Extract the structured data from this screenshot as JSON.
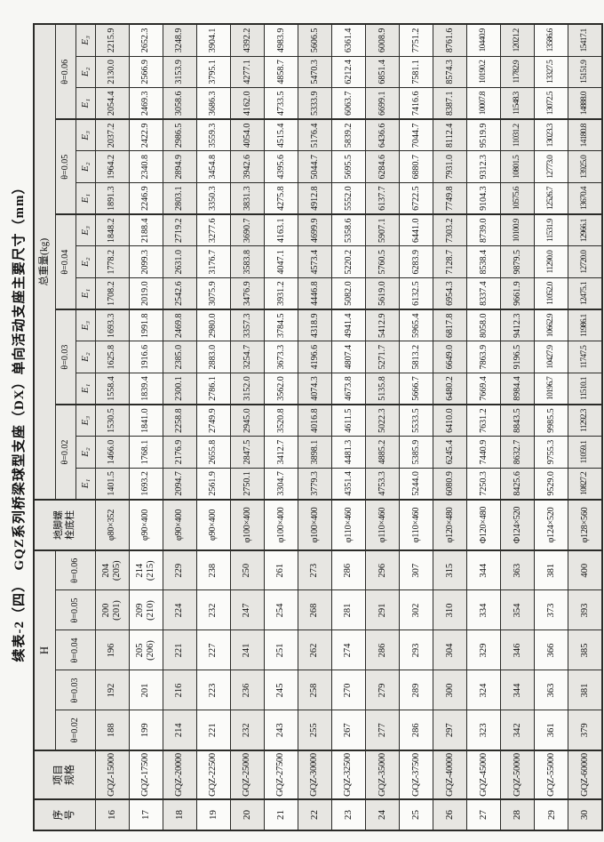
{
  "title": "续表-2（四）　GQZ系列桥梁球型支座（DX）单向活动支座主要尺寸（mm）",
  "colors": {
    "cell_shaded": "#e7e6e2",
    "cell_plain": "#fbfbf9",
    "border": "#2b2b28",
    "page_background": "#f7f7f4",
    "text": "#111111"
  },
  "table": {
    "headers": {
      "serial": "序\n号",
      "spec": "项目\n规格",
      "h": "H",
      "bolt": "地脚螺\n栓底柱",
      "weight": "总重量(kg)",
      "theta_labels": [
        "θ=0.02",
        "θ=0.03",
        "θ=0.04",
        "θ=0.05",
        "θ=0.06"
      ],
      "e_labels": [
        "E₁",
        "E₂",
        "E₃"
      ]
    },
    "rows": [
      {
        "no": "16",
        "spec": "GQZ-15000",
        "h": [
          "188",
          "192",
          "196",
          "200\n(201)",
          "204\n(205)"
        ],
        "bolt": "φ80×352",
        "e": [
          "1401.5",
          "1466.0",
          "1530.5",
          "1558.4",
          "1625.8",
          "1693.3",
          "1708.2",
          "1778.2",
          "1848.2",
          "1891.3",
          "1964.2",
          "2037.2",
          "2054.4",
          "2130.0",
          "2215.9"
        ]
      },
      {
        "no": "17",
        "spec": "GQZ-17500",
        "h": [
          "199",
          "201",
          "205\n(206)",
          "209\n(210)",
          "214\n(215)"
        ],
        "bolt": "φ90×400",
        "e": [
          "1693.2",
          "1768.1",
          "1841.0",
          "1839.4",
          "1916.6",
          "1991.8",
          "2019.0",
          "2099.3",
          "2188.4",
          "2246.9",
          "2340.8",
          "2422.9",
          "2469.3",
          "2566.9",
          "2652.3"
        ]
      },
      {
        "no": "18",
        "spec": "GQZ-20000",
        "h": [
          "214",
          "216",
          "221",
          "224",
          "229"
        ],
        "bolt": "φ90×400",
        "e": [
          "2094.7",
          "2176.9",
          "2258.8",
          "2300.1",
          "2385.0",
          "2469.8",
          "2542.6",
          "2631.0",
          "2719.2",
          "2803.1",
          "2894.9",
          "2986.5",
          "3058.6",
          "3153.9",
          "3248.9"
        ]
      },
      {
        "no": "19",
        "spec": "GQZ-22500",
        "h": [
          "221",
          "223",
          "227",
          "232",
          "238"
        ],
        "bolt": "φ90×400",
        "e": [
          "2561.9",
          "2655.8",
          "2749.9",
          "2786.1",
          "2883.0",
          "2980.0",
          "3075.9",
          "3176.7",
          "3277.6",
          "3350.3",
          "3454.8",
          "3559.3",
          "3686.3",
          "3795.1",
          "3904.1"
        ]
      },
      {
        "no": "20",
        "spec": "GQZ-25000",
        "h": [
          "232",
          "236",
          "241",
          "247",
          "250"
        ],
        "bolt": "φ100×400",
        "e": [
          "2750.1",
          "2847.5",
          "2945.0",
          "3152.0",
          "3254.7",
          "3357.3",
          "3476.9",
          "3583.8",
          "3690.7",
          "3831.3",
          "3942.6",
          "4054.0",
          "4162.0",
          "4277.1",
          "4392.2"
        ]
      },
      {
        "no": "21",
        "spec": "GQZ-27500",
        "h": [
          "243",
          "245",
          "251",
          "254",
          "261"
        ],
        "bolt": "φ100×400",
        "e": [
          "3304.7",
          "3412.7",
          "3520.8",
          "3562.0",
          "3673.3",
          "3784.5",
          "3931.2",
          "4047.1",
          "4163.1",
          "4275.8",
          "4395.6",
          "4515.4",
          "4733.5",
          "4858.7",
          "4983.9"
        ]
      },
      {
        "no": "22",
        "spec": "GQZ-30000",
        "h": [
          "255",
          "258",
          "262",
          "268",
          "273"
        ],
        "bolt": "φ100×400",
        "e": [
          "3779.3",
          "3898.1",
          "4016.8",
          "4074.3",
          "4196.6",
          "4318.9",
          "4446.8",
          "4573.4",
          "4699.9",
          "4912.8",
          "5044.7",
          "5176.4",
          "5333.9",
          "5470.3",
          "5606.5"
        ]
      },
      {
        "no": "23",
        "spec": "GQZ-32500",
        "h": [
          "267",
          "270",
          "274",
          "281",
          "286"
        ],
        "bolt": "φ110×460",
        "e": [
          "4351.4",
          "4481.3",
          "4611.5",
          "4673.8",
          "4807.4",
          "4941.4",
          "5082.0",
          "5220.2",
          "5358.6",
          "5552.0",
          "5695.5",
          "5839.2",
          "6063.7",
          "6212.4",
          "6361.4"
        ]
      },
      {
        "no": "24",
        "spec": "GQZ-35000",
        "h": [
          "277",
          "279",
          "286",
          "291",
          "296"
        ],
        "bolt": "φ110×460",
        "e": [
          "4753.3",
          "4885.2",
          "5022.3",
          "5135.8",
          "5271.7",
          "5412.9",
          "5619.0",
          "5760.5",
          "5907.1",
          "6137.7",
          "6284.6",
          "6436.6",
          "6699.1",
          "6851.4",
          "6008.9"
        ]
      },
      {
        "no": "25",
        "spec": "GQZ-37500",
        "h": [
          "286",
          "289",
          "293",
          "302",
          "307"
        ],
        "bolt": "φ110×460",
        "e": [
          "5244.0",
          "5385.9",
          "5533.5",
          "5666.7",
          "5813.2",
          "5965.4",
          "6132.5",
          "6283.9",
          "6441.0",
          "6722.5",
          "6880.7",
          "7044.7",
          "7416.6",
          "7581.1",
          "7751.2"
        ]
      },
      {
        "no": "26",
        "spec": "GQZ-40000",
        "h": [
          "297",
          "300",
          "304",
          "310",
          "315"
        ],
        "bolt": "φ120×480",
        "e": [
          "6080.9",
          "6245.4",
          "6410.0",
          "6480.2",
          "6649.0",
          "6817.8",
          "6954.3",
          "7128.7",
          "7303.2",
          "7749.8",
          "7931.0",
          "8112.4",
          "8387.1",
          "8574.3",
          "8761.6"
        ]
      },
      {
        "no": "27",
        "spec": "GQZ-45000",
        "h": [
          "323",
          "324",
          "329",
          "334",
          "344"
        ],
        "bolt": "Φ120×480",
        "e": [
          "7250.3",
          "7440.9",
          "7631.2",
          "7669.4",
          "7863.9",
          "8058.0",
          "8337.4",
          "8538.4",
          "8739.0",
          "9104.3",
          "9312.3",
          "9519.9",
          "10007.8",
          "10190.2",
          "10440.9"
        ]
      },
      {
        "no": "28",
        "spec": "GQZ-50000",
        "h": [
          "342",
          "344",
          "346",
          "354",
          "363"
        ],
        "bolt": "Φ124×520",
        "e": [
          "8425.6",
          "8632.7",
          "8843.5",
          "8984.4",
          "9196.5",
          "9412.3",
          "9661.9",
          "9879.5",
          "10100.9",
          "10575.6",
          "10801.5",
          "11031.2",
          "11548.3",
          "11782.9",
          "12021.2"
        ]
      },
      {
        "no": "29",
        "spec": "GQZ-55000",
        "h": [
          "361",
          "363",
          "366",
          "373",
          "381"
        ],
        "bolt": "φ124×520",
        "e": [
          "9529.0",
          "9755.3",
          "9985.5",
          "10196.7",
          "10427.9",
          "10662.9",
          "11052.0",
          "11290.0",
          "11531.9",
          "12526.7",
          "12773.0",
          "13023.3",
          "13072.5",
          "13327.5",
          "13586.6"
        ]
      },
      {
        "no": "30",
        "spec": "GQZ-60000",
        "h": [
          "379",
          "381",
          "385",
          "393",
          "400"
        ],
        "bolt": "φ128×560",
        "e": [
          "10827.2",
          "11059.1",
          "11292.3",
          "11510.1",
          "11747.5",
          "11986.1",
          "12475.1",
          "12720.0",
          "12966.1",
          "13670.4",
          "13925.0",
          "14180.8",
          "14888.0",
          "15151.9",
          "15417.1"
        ]
      }
    ]
  }
}
